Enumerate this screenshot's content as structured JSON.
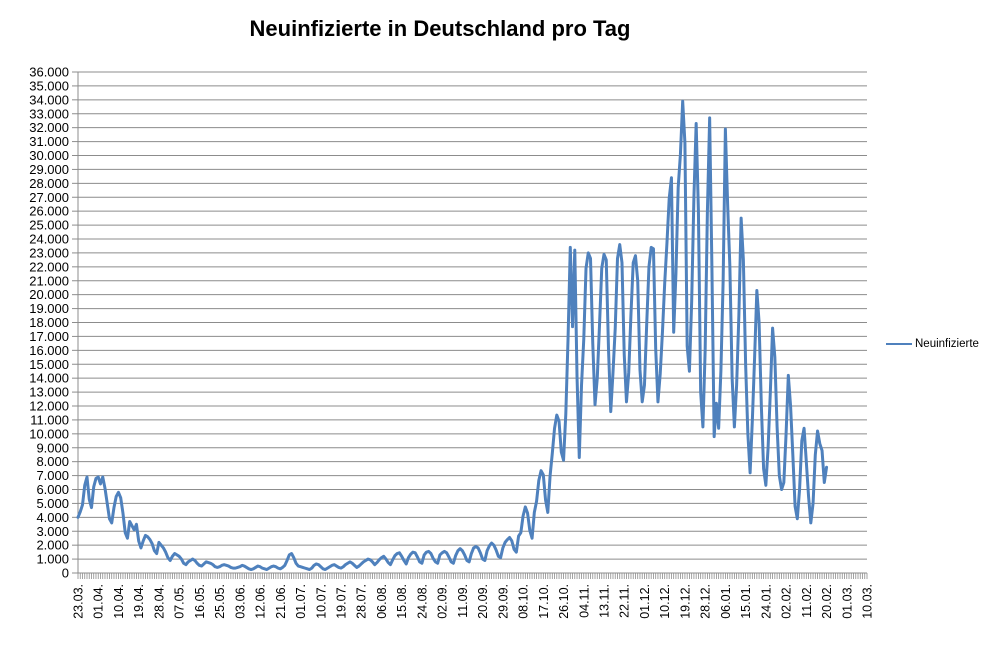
{
  "title": "Neuinfizierte in Deutschland pro Tag",
  "legend": {
    "label": "Neuinfizierte"
  },
  "colors": {
    "series_line": "#4F81BD",
    "gridline": "#8C8C8C",
    "axis": "#8C8C8C",
    "tick": "#8C8C8C",
    "label_text": "#000000",
    "background": "#FFFFFF"
  },
  "chart_data": {
    "type": "line",
    "title": "Neuinfizierte in Deutschland pro Tag",
    "xlabel": "",
    "ylabel": "",
    "ylim": [
      0,
      36000
    ],
    "y_tick_step": 1000,
    "grid": "horizontal",
    "legend_position": "right",
    "categories_total": 352,
    "x_tick_interval": 9,
    "x_tick_labels": [
      "23.03.",
      "01.04.",
      "10.04.",
      "19.04.",
      "28.04.",
      "07.05.",
      "16.05.",
      "25.05.",
      "03.06.",
      "12.06.",
      "21.06.",
      "01.07.",
      "10.07.",
      "19.07.",
      "28.07.",
      "06.08.",
      "15.08.",
      "24.08.",
      "02.09.",
      "11.09.",
      "20.09.",
      "29.09.",
      "08.10.",
      "17.10.",
      "26.10.",
      "04.11.",
      "13.11.",
      "22.11.",
      "01.12.",
      "10.12.",
      "19.12.",
      "28.12.",
      "06.01.",
      "15.01.",
      "24.01.",
      "02.02.",
      "11.02.",
      "20.02.",
      "01.03.",
      "10.03."
    ],
    "y_tick_labels": [
      "36.000",
      "35.000",
      "34.000",
      "33.000",
      "32.000",
      "31.000",
      "30.000",
      "29.000",
      "28.000",
      "27.000",
      "26.000",
      "25.000",
      "24.000",
      "23.000",
      "22.000",
      "21.000",
      "20.000",
      "19.000",
      "18.000",
      "17.000",
      "16.000",
      "15.000",
      "14.000",
      "13.000",
      "12.000",
      "11.000",
      "10.000",
      "9.000",
      "8.000",
      "7.000",
      "6.000",
      "5.000",
      "4.000",
      "3.000",
      "2.000",
      "1.000",
      "0"
    ],
    "series": [
      {
        "name": "Neuinfizierte",
        "color": "#4F81BD",
        "values": [
          4000,
          4400,
          4900,
          6300,
          6900,
          5300,
          4700,
          6200,
          6800,
          6900,
          6400,
          6900,
          6100,
          5000,
          3900,
          3600,
          4700,
          5500,
          5800,
          5400,
          4300,
          2900,
          2500,
          3700,
          3400,
          3100,
          3500,
          2300,
          1800,
          2300,
          2700,
          2600,
          2400,
          2100,
          1600,
          1400,
          2200,
          2000,
          1800,
          1500,
          1100,
          900,
          1200,
          1400,
          1300,
          1200,
          1000,
          700,
          600,
          800,
          900,
          1000,
          900,
          700,
          550,
          500,
          650,
          800,
          750,
          700,
          600,
          450,
          400,
          450,
          550,
          600,
          550,
          500,
          400,
          350,
          350,
          400,
          450,
          550,
          500,
          400,
          300,
          250,
          300,
          400,
          500,
          450,
          350,
          300,
          250,
          350,
          450,
          500,
          450,
          350,
          300,
          400,
          550,
          900,
          1300,
          1400,
          1100,
          700,
          500,
          450,
          400,
          350,
          300,
          250,
          350,
          550,
          650,
          600,
          450,
          300,
          250,
          350,
          450,
          550,
          600,
          500,
          400,
          350,
          450,
          600,
          700,
          800,
          700,
          550,
          400,
          500,
          650,
          800,
          900,
          1000,
          950,
          800,
          600,
          750,
          950,
          1100,
          1200,
          1000,
          750,
          600,
          950,
          1250,
          1400,
          1450,
          1200,
          900,
          650,
          1100,
          1350,
          1500,
          1450,
          1150,
          800,
          700,
          1300,
          1500,
          1550,
          1400,
          1050,
          800,
          700,
          1300,
          1450,
          1550,
          1450,
          1150,
          800,
          700,
          1250,
          1600,
          1750,
          1600,
          1300,
          900,
          800,
          1400,
          1800,
          1900,
          1800,
          1450,
          1000,
          900,
          1600,
          1950,
          2150,
          2000,
          1650,
          1200,
          1100,
          1800,
          2200,
          2400,
          2550,
          2300,
          1700,
          1500,
          2650,
          2900,
          4100,
          4750,
          4300,
          3050,
          2500,
          4350,
          5150,
          6650,
          7350,
          7050,
          5250,
          4350,
          6950,
          8600,
          10400,
          11350,
          10900,
          8700,
          8100,
          11400,
          16800,
          23400,
          17700,
          23200,
          14100,
          8300,
          13500,
          16800,
          21900,
          23000,
          22600,
          16500,
          12100,
          14000,
          17800,
          21900,
          22900,
          22500,
          16100,
          11600,
          14400,
          17600,
          22600,
          23600,
          22300,
          15700,
          12300,
          14400,
          18600,
          22300,
          22800,
          21000,
          14600,
          12300,
          13500,
          17900,
          22000,
          23400,
          23300,
          16100,
          12300,
          14300,
          17300,
          20800,
          23700,
          26900,
          28400,
          17300,
          21500,
          27700,
          30100,
          33900,
          30900,
          16300,
          14500,
          19500,
          27000,
          32300,
          26000,
          13000,
          10500,
          16000,
          26000,
          32700,
          22000,
          9800,
          12200,
          10400,
          14500,
          21000,
          31900,
          26500,
          22000,
          14000,
          10500,
          13500,
          18500,
          25500,
          22500,
          15000,
          10000,
          7200,
          11000,
          15500,
          20300,
          18000,
          12000,
          7500,
          6300,
          9000,
          13000,
          17600,
          15500,
          10500,
          7000,
          6000,
          6500,
          10000,
          14200,
          12000,
          8500,
          4800,
          3900,
          6000,
          9500,
          10400,
          8000,
          5500,
          3600,
          5000,
          8500,
          10200,
          9300,
          8800,
          6500,
          7600
        ]
      }
    ]
  }
}
